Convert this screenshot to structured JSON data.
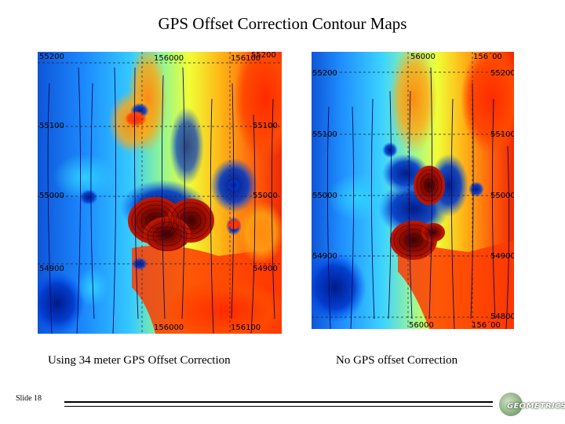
{
  "title": "GPS Offset Correction Contour Maps",
  "left_map": {
    "caption": "Using 34 meter GPS Offset Correction",
    "labels": {
      "top_left": "55200",
      "top_a": "156000",
      "top_b": "156100",
      "top_right": "55200",
      "left_1": "55100",
      "right_1": "55100",
      "left_2": "55000",
      "right_2": "55000",
      "left_3": "54900",
      "right_3": "54900",
      "bottom_a": "156000",
      "bottom_b": "156100"
    }
  },
  "right_map": {
    "caption": "No GPS offset Correction",
    "labels": {
      "top_a": "56000",
      "top_b": "156´00",
      "left_0": "55200",
      "right_0": "55200",
      "left_1": "55100",
      "right_1": "55100",
      "left_2": "55000",
      "right_2": "55000",
      "left_3": "54900",
      "right_3": "54900",
      "bottom_a": "56000",
      "bottom_b": "156´00",
      "right_4": "54800"
    }
  },
  "footer": {
    "slide_number": "Slide 18",
    "logo_text": "GEOMETRICS"
  }
}
